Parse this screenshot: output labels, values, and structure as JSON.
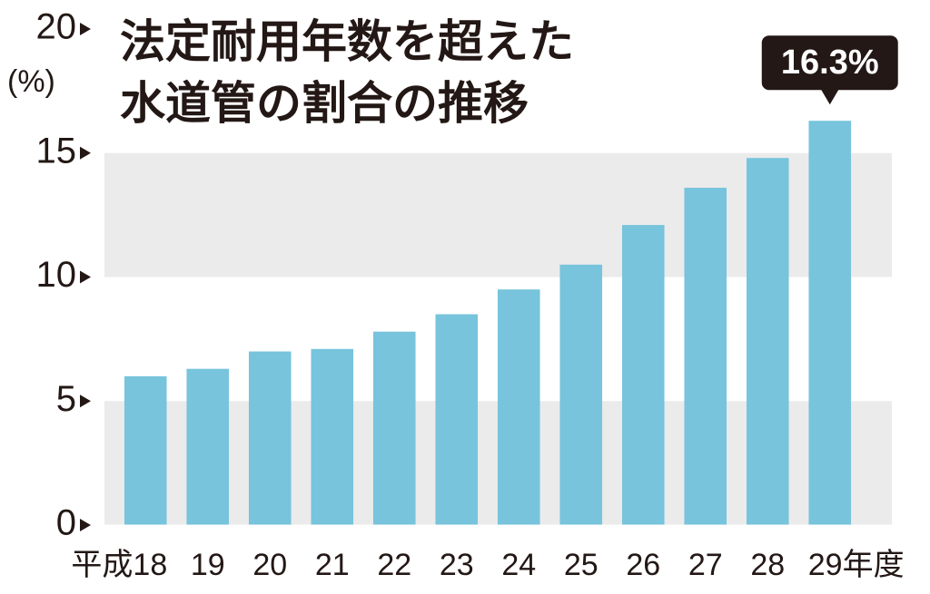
{
  "chart_data": {
    "type": "bar",
    "title": [
      "法定耐用年数を超えた",
      "水道管の割合の推移"
    ],
    "y_label": "(%)",
    "categories": [
      "平成18",
      "19",
      "20",
      "21",
      "22",
      "23",
      "24",
      "25",
      "26",
      "27",
      "28",
      "29年度"
    ],
    "values": [
      6.0,
      6.3,
      7.0,
      7.1,
      7.8,
      8.5,
      9.5,
      10.5,
      12.1,
      13.6,
      14.8,
      16.3
    ],
    "value_labels": [
      null,
      null,
      null,
      null,
      null,
      null,
      null,
      null,
      null,
      null,
      null,
      "16.3%"
    ],
    "color": "#77c4dc",
    "ylim": [
      0,
      20
    ],
    "yticks": [
      0,
      5,
      10,
      15,
      20
    ],
    "grid": true
  }
}
